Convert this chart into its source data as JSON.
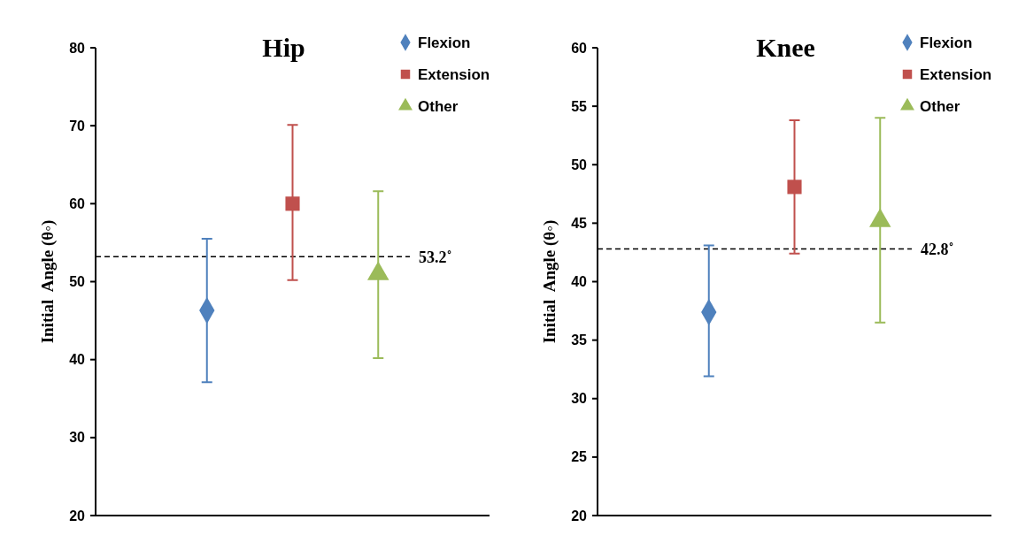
{
  "chart_data": [
    {
      "type": "scatter",
      "title": "Hip",
      "ylabel": "Initial  Angle (θ◦)",
      "categories": [
        null,
        null,
        null
      ],
      "ylim": [
        20,
        80
      ],
      "yticks": [
        20,
        30,
        40,
        50,
        60,
        70,
        80
      ],
      "grid": false,
      "legend": "top right",
      "tick_labels": "y",
      "series": [
        {
          "name": "Flexion",
          "color": "#4f81bd",
          "marker": "diamond",
          "values": [
            46.3,
            null,
            null
          ],
          "errors": [
            [
              37.1,
              55.5
            ],
            null,
            null
          ]
        },
        {
          "name": "Extension",
          "color": "#c0504d",
          "marker": "square",
          "values": [
            null,
            60.0,
            null
          ],
          "errors": [
            null,
            [
              50.2,
              70.1
            ],
            null
          ]
        },
        {
          "name": "Other",
          "color": "#9bbb59",
          "marker": "triangle",
          "values": [
            null,
            null,
            51.0
          ],
          "errors": [
            null,
            null,
            [
              40.2,
              61.6
            ]
          ]
        }
      ],
      "ref_lines": [
        {
          "axis": "y",
          "value": 53.2,
          "label": "53.2˚",
          "color": "#000000",
          "line_style": "dashed"
        }
      ]
    },
    {
      "type": "scatter",
      "title": "Knee",
      "ylabel": "Initial  Angle (θ◦)",
      "categories": [
        null,
        null,
        null
      ],
      "ylim": [
        20,
        60
      ],
      "yticks": [
        20,
        25,
        30,
        35,
        40,
        45,
        50,
        55,
        60
      ],
      "grid": false,
      "legend": "top right",
      "tick_labels": "y",
      "series": [
        {
          "name": "Flexion",
          "color": "#4f81bd",
          "marker": "diamond",
          "values": [
            37.4,
            null,
            null
          ],
          "errors": [
            [
              31.9,
              43.1
            ],
            null,
            null
          ]
        },
        {
          "name": "Extension",
          "color": "#c0504d",
          "marker": "square",
          "values": [
            null,
            48.1,
            null
          ],
          "errors": [
            null,
            [
              42.4,
              53.8
            ],
            null
          ]
        },
        {
          "name": "Other",
          "color": "#9bbb59",
          "marker": "triangle",
          "values": [
            null,
            null,
            45.2
          ],
          "errors": [
            null,
            null,
            [
              36.5,
              54.0
            ]
          ]
        }
      ],
      "ref_lines": [
        {
          "axis": "y",
          "value": 42.8,
          "label": "42.8˚",
          "color": "#000000",
          "line_style": "dashed"
        }
      ]
    }
  ]
}
